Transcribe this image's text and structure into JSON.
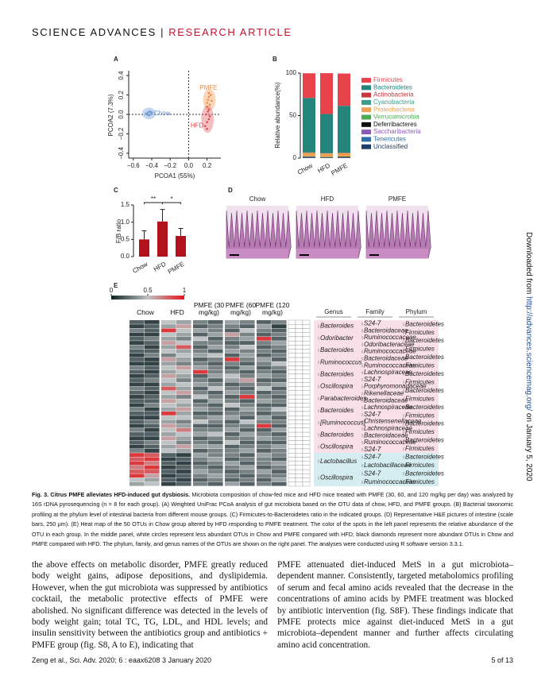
{
  "header": {
    "journal": "SCIENCE ADVANCES",
    "separator": "|",
    "section": "RESEARCH ARTICLE"
  },
  "figure": {
    "panel_a": {
      "label": "A",
      "type": "scatter",
      "x_label": "PCOA1 (55%)",
      "y_label": "PCOA2 (7.3%)",
      "xlim": [
        -0.65,
        0.35
      ],
      "ylim": [
        -0.45,
        0.45
      ],
      "xticks": [
        {
          "value": -0.6,
          "label": "−0.6"
        },
        {
          "value": -0.4,
          "label": "−0.4"
        },
        {
          "value": -0.2,
          "label": "−0.2"
        },
        {
          "value": 0,
          "label": "0.0"
        },
        0.2
      ],
      "yticks": [
        {
          "value": -0.4,
          "label": "−0.4"
        },
        {
          "value": -0.2,
          "label": "−0.2"
        },
        {
          "value": 0,
          "label": "0.0"
        },
        0.2,
        0.4
      ],
      "series": [
        {
          "name": "Chow",
          "color": "#5b8fd0",
          "x": [
            -0.46,
            -0.44,
            -0.42,
            -0.41,
            -0.43,
            -0.45,
            -0.4,
            -0.42
          ],
          "y": [
            0.01,
            0.02,
            0.0,
            0.015,
            -0.01,
            0.0,
            0.02,
            0.03
          ]
        },
        {
          "name": "PMFE",
          "color": "#f08a3c",
          "x": [
            0.2,
            0.22,
            0.24,
            0.21,
            0.23,
            0.25,
            0.2,
            0.22
          ],
          "y": [
            0.12,
            0.18,
            0.2,
            0.15,
            0.1,
            0.14,
            0.08,
            0.22
          ]
        },
        {
          "name": "HFD",
          "color": "#e0474c",
          "x": [
            0.18,
            0.2,
            0.22,
            0.19,
            0.21,
            0.23,
            0.2,
            0.22
          ],
          "y": [
            -0.12,
            -0.08,
            -0.05,
            0.0,
            0.03,
            -0.02,
            -0.15,
            0.05
          ]
        }
      ]
    },
    "panel_b": {
      "label": "B",
      "type": "stacked_bar",
      "y_label": "Relative abundance(%)",
      "categories": [
        "Chow",
        "HFD",
        "PMFE"
      ],
      "ylim": [
        0,
        100
      ],
      "yticks": [
        0,
        50,
        100
      ],
      "series": [
        {
          "name": "Firmicutes",
          "color": "#e8434b",
          "values": [
            29,
            48,
            38
          ]
        },
        {
          "name": "Bacteroidetes",
          "color": "#23857c",
          "values": [
            64,
            46,
            55
          ]
        },
        {
          "name": "Actinobacteria",
          "color": "#c8373c",
          "values": [
            0.4,
            0.3,
            0.4
          ]
        },
        {
          "name": "Cyanobacteria",
          "color": "#3a9c8a",
          "values": [
            0.3,
            0.2,
            0.3
          ]
        },
        {
          "name": "Proteobacteria",
          "color": "#f0a050",
          "values": [
            4,
            4,
            4
          ]
        },
        {
          "name": "Verrucomicrobia",
          "color": "#4caa55",
          "values": [
            0.5,
            0.3,
            0.4
          ]
        },
        {
          "name": "Deferribacteres",
          "color": "#111111",
          "values": [
            0.6,
            0.4,
            0.5
          ]
        },
        {
          "name": "Saccharibacteria",
          "color": "#8a5bb5",
          "values": [
            0.2,
            0.1,
            0.2
          ]
        },
        {
          "name": "Tenericutes",
          "color": "#2f6fa8",
          "values": [
            0.3,
            0.2,
            0.2
          ]
        },
        {
          "name": "Unclassified",
          "color": "#1f3d6b",
          "values": [
            0.5,
            0.4,
            0.5
          ]
        }
      ]
    },
    "panel_c": {
      "label": "C",
      "type": "bar",
      "y_label": "F/B ratio",
      "categories": [
        "Chow",
        "HFD",
        "PMFE"
      ],
      "values": [
        0.5,
        1.02,
        0.6
      ],
      "errors": [
        0.25,
        0.35,
        0.22
      ],
      "color": "#b3121c",
      "ylim": [
        0,
        1.5
      ],
      "yticks": [
        {
          "value": 0,
          "label": "0.0"
        },
        0.5,
        {
          "value": 1,
          "label": "1.0"
        },
        1.5
      ],
      "significance": [
        "**",
        "*"
      ]
    },
    "panel_d": {
      "label": "D",
      "titles": [
        "Chow",
        "HFD",
        "PMFE"
      ]
    },
    "panel_e": {
      "label": "E",
      "type": "heatmap",
      "scale_ticks": [
        0,
        0.5,
        1
      ],
      "colormap": [
        "#0f2226",
        "#bfc3c3",
        "#e3161c"
      ],
      "groups": [
        "Chow",
        "HFD",
        "PMFE (30 mg/kg)",
        "PMFE (60 mg/kg)",
        "PMFE (120 mg/kg)"
      ],
      "annotation_headers": [
        "Genus",
        "Family",
        "Phylum"
      ],
      "blocks": [
        {
          "color": "#f9dfe7",
          "values": [
            [
              0.2,
              0.1,
              0.5,
              0.4,
              0.3,
              0.2,
              0.4,
              0.3,
              0.2,
              0.3
            ],
            [
              0.1,
              0.2,
              0.4,
              0.6,
              0.2,
              0.3,
              0.3,
              0.2,
              0.4,
              0.1
            ],
            [
              0.3,
              0.2,
              0.9,
              0.5,
              0.4,
              0.3,
              0.2,
              0.5,
              0.3,
              0.2
            ],
            [
              0.1,
              0.1,
              0.5,
              0.4,
              0.2,
              0.4,
              0.6,
              0.3,
              0.2,
              0.3
            ],
            [
              0.2,
              0.3,
              0.4,
              0.3,
              0.5,
              0.2,
              0.3,
              0.4,
              0.9,
              0.2
            ],
            [
              0.1,
              0.2,
              0.6,
              0.5,
              0.3,
              0.3,
              0.2,
              0.2,
              0.3,
              0.4
            ],
            [
              0.3,
              0.1,
              0.4,
              0.8,
              0.2,
              0.4,
              0.3,
              0.5,
              0.2,
              0.3
            ],
            [
              0.2,
              0.2,
              0.5,
              0.4,
              0.3,
              0.2,
              0.4,
              0.3,
              0.3,
              0.2
            ],
            [
              0.1,
              0.3,
              0.3,
              0.5,
              0.4,
              0.5,
              0.2,
              0.4,
              0.2,
              0.3
            ],
            [
              0.2,
              0.1,
              0.6,
              0.4,
              0.2,
              0.3,
              0.9,
              0.3,
              0.4,
              0.2
            ],
            [
              0.1,
              0.1,
              0.4,
              0.3,
              0.3,
              0.2,
              0.3,
              0.2,
              0.3,
              0.5
            ],
            [
              0.3,
              0.2,
              0.5,
              0.6,
              0.4,
              0.3,
              0.2,
              0.4,
              0.2,
              0.3
            ],
            [
              0.2,
              0.1,
              0.4,
              0.5,
              0.9,
              0.3,
              0.3,
              0.2,
              0.3,
              0.2
            ],
            [
              0.1,
              0.2,
              0.6,
              0.4,
              0.2,
              0.4,
              0.5,
              0.3,
              0.4,
              0.3
            ],
            [
              0.2,
              0.3,
              0.5,
              0.3,
              0.3,
              0.2,
              0.4,
              0.6,
              0.2,
              0.2
            ],
            [
              0.1,
              0.1,
              0.4,
              0.5,
              0.4,
              0.3,
              0.2,
              0.3,
              0.3,
              0.4
            ],
            [
              0.3,
              0.2,
              0.8,
              0.4,
              0.2,
              0.5,
              0.3,
              0.2,
              0.5,
              0.2
            ],
            [
              0.2,
              0.1,
              0.5,
              0.6,
              0.3,
              0.2,
              0.4,
              0.3,
              0.2,
              0.3
            ],
            [
              0.1,
              0.2,
              0.4,
              0.3,
              0.5,
              0.3,
              0.2,
              0.9,
              0.3,
              0.2
            ],
            [
              0.2,
              0.2,
              0.6,
              0.5,
              0.2,
              0.4,
              0.3,
              0.2,
              0.4,
              0.3
            ],
            [
              0.1,
              0.3,
              0.5,
              0.4,
              0.3,
              0.2,
              0.5,
              0.3,
              0.2,
              0.2
            ],
            [
              0.3,
              0.1,
              0.4,
              0.6,
              0.4,
              0.3,
              0.2,
              0.4,
              0.3,
              0.5
            ],
            [
              0.2,
              0.2,
              0.9,
              0.4,
              0.2,
              0.2,
              0.3,
              0.3,
              0.2,
              0.3
            ],
            [
              0.1,
              0.1,
              0.5,
              0.5,
              0.3,
              0.4,
              0.4,
              0.2,
              0.4,
              0.2
            ],
            [
              0.2,
              0.3,
              0.4,
              0.3,
              0.5,
              0.3,
              0.2,
              0.5,
              0.3,
              0.3
            ],
            [
              0.1,
              0.2,
              0.6,
              0.4,
              0.2,
              0.2,
              0.3,
              0.3,
              0.9,
              0.2
            ],
            [
              0.3,
              0.1,
              0.5,
              0.7,
              0.3,
              0.3,
              0.4,
              0.2,
              0.2,
              0.4
            ],
            [
              0.2,
              0.2,
              0.4,
              0.5,
              0.4,
              0.5,
              0.2,
              0.4,
              0.3,
              0.2
            ],
            [
              0.1,
              0.1,
              0.6,
              0.4,
              0.2,
              0.3,
              0.3,
              0.3,
              0.4,
              0.3
            ],
            [
              0.2,
              0.3,
              0.5,
              0.3,
              0.3,
              0.2,
              0.5,
              0.2,
              0.2,
              0.2
            ],
            [
              0.1,
              0.2,
              0.4,
              0.6,
              0.4,
              0.4,
              0.2,
              0.3,
              0.3,
              0.4
            ],
            [
              0.3,
              0.1,
              0.5,
              0.4,
              0.2,
              0.3,
              0.3,
              0.4,
              0.2,
              0.3
            ]
          ],
          "genus": [
            "Bacteroides",
            "Odoribacter",
            "Bacteroides",
            "Ruminococcus",
            "Bacteroides",
            "Oscillospira",
            "Parabacteroides",
            "Bacteroides",
            "[Ruminococcus]",
            "Bacteroides",
            "Oscillospira"
          ],
          "family": [
            "S24-7",
            "Bacteroidaceae",
            "Ruminococcaceae",
            "Odoribacteraceae",
            "Ruminococcaceae",
            "Bacteroidaceae",
            "Ruminococcaceae",
            "Lachnospiraceae",
            "S24-7",
            "Porphyromonadaceae",
            "Rikenellaceae",
            "Bacteroidaceae",
            "Lachnospiraceae",
            "S24-7",
            "Christensenellaceae",
            "Lachnospiraceae",
            "Bacteroidaceae",
            "Ruminococcaceae",
            "S24-7"
          ],
          "phylum": [
            "Bacteroidetes",
            "Firmicutes",
            "Bacteroidetes",
            "Firmicutes",
            "Bacteroidetes",
            "Firmicutes",
            "Bacteroidetes",
            "Firmicutes",
            "Bacteroidetes",
            "Firmicutes",
            "Bacteroidetes",
            "Firmicutes",
            "Bacteroidetes",
            "Firmicutes",
            "Bacteroidetes",
            "Firmicutes"
          ]
        },
        {
          "color": "#d5edf0",
          "values": [
            [
              0.9,
              0.8,
              0.2,
              0.1,
              0.4,
              0.3,
              0.3,
              0.2,
              0.4,
              0.3
            ],
            [
              0.8,
              0.9,
              0.1,
              0.2,
              0.3,
              0.4,
              0.2,
              0.3,
              0.3,
              0.2
            ],
            [
              0.9,
              0.7,
              0.2,
              0.1,
              0.2,
              0.3,
              0.4,
              0.2,
              0.3,
              0.4
            ],
            [
              0.7,
              0.9,
              0.1,
              0.2,
              0.3,
              0.2,
              0.3,
              0.4,
              0.2,
              0.3
            ],
            [
              0.8,
              0.8,
              0.2,
              0.1,
              0.4,
              0.3,
              0.2,
              0.3,
              0.4,
              0.2
            ],
            [
              0.9,
              0.6,
              0.1,
              0.2,
              0.3,
              0.4,
              0.3,
              0.2,
              0.3,
              0.3
            ],
            [
              0.5,
              0.4,
              0.2,
              0.1,
              0.2,
              0.3,
              0.2,
              0.3,
              0.2,
              0.4
            ],
            [
              0.4,
              0.5,
              0.1,
              0.2,
              0.3,
              0.2,
              0.4,
              0.2,
              0.3,
              0.2
            ]
          ],
          "genus": [
            "Lactobacillus",
            "Oscillospira"
          ],
          "family": [
            "S24-7",
            "Lactobacillaceae",
            "S24-7",
            "Ruminococcaceae"
          ],
          "phylum": [
            "Bacteroidetes",
            "Firmicutes",
            "Bacteroidetes",
            "Firmicutes"
          ]
        }
      ]
    }
  },
  "caption": {
    "title": "Fig. 3. Citrus PMFE alleviates HFD-induced gut dysbiosis.",
    "text": "Microbiota composition of chow-fed mice and HFD mice treated with PMFE (30, 60, and 120 mg/kg per day) was analyzed by 16S rDNA pyrosequencing (n = 8 for each group). (A) Weighted UniFrac PCoA analysis of gut microbiota based on the OTU data of chow, HFD, and PMFE groups. (B) Bacterial taxonomic profiling at the phylum level of intestinal bacteria from different mouse groups. (C) Firmicutes-to-Bacteroidetes ratio in the indicated groups. (D) Representative H&E pictures of intestine (scale bars, 250 μm). (E) Heat map of the 50 OTUs in Chow group altered by HFD responding to PMFE treatment. The color of the spots in the left panel represents the relative abundance of the OTU in each group. In the middle panel, white circles represent less abundant OTUs in Chow and PMFE compared with HFD; black diamonds represent more abundant OTUs in Chow and PMFE compared with HFD. The phylum, family, and genus names of the OTUs are shown on the right panel. The analyses were conducted using R software version 3.3.1."
  },
  "body": {
    "left": "the above effects on metabolic disorder, PMFE greatly reduced body weight gains, adipose depositions, and dyslipidemia. However, when the gut microbiota was suppressed by antibiotics cocktail, the metabolic protective effects of PMFE were abolished. No significant difference was detected in the levels of body weight gain; total TC, TG, LDL, and HDL levels; and insulin sensitivity between the antibiotics group and antibiotics + PMFE group (fig. S8, A to E), indicating that",
    "right": "PMFE attenuated diet-induced MetS in a gut microbiota–dependent manner. Consistently, targeted metabolomics profiling of serum and fecal amino acids revealed that the decrease in the concentrations of amino acids by PMFE treatment was blocked by antibiotic intervention (fig. S8F). These findings indicate that PMFE protects mice against diet-induced MetS in a gut microbiota–dependent manner and further affects circulating amino acid concentration."
  },
  "footer": {
    "citation": "Zeng et al., Sci. Adv. 2020; 6 : eaax6208     3 January 2020",
    "page": "5 of 13"
  },
  "side_note": {
    "prefix": "Downloaded from",
    "url": "http://advances.sciencemag.org/",
    "suffix": "on January 5, 2020"
  }
}
